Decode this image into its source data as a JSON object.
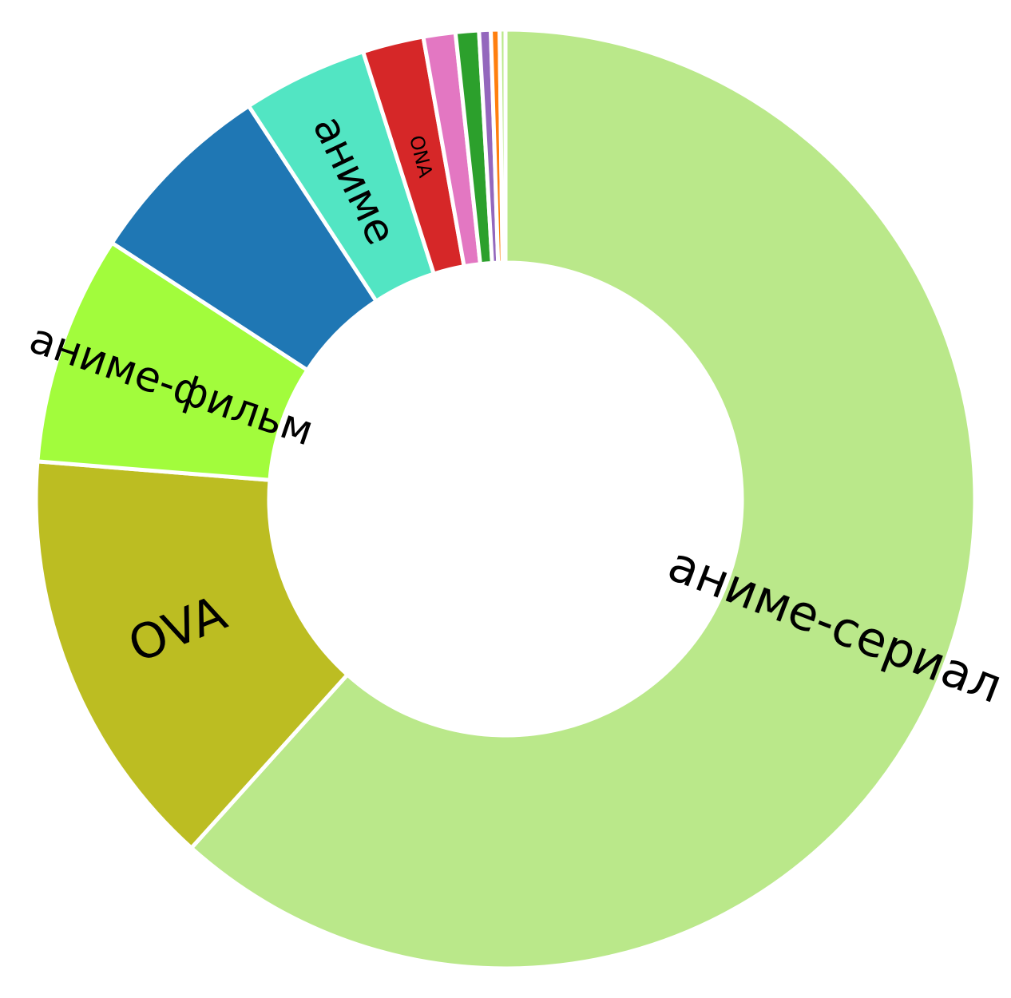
{
  "chart_data": {
    "type": "pie",
    "donut": true,
    "title": "",
    "series": [
      {
        "name": "type",
        "slices": [
          {
            "label": "аниме-сериал",
            "value": 61.6,
            "color": "#bae88a",
            "show_label": true
          },
          {
            "label": "OVA",
            "value": 14.6,
            "color": "#bcbd22",
            "show_label": true
          },
          {
            "label": "аниме-фильм",
            "value": 7.9,
            "color": "#a2fc3c",
            "show_label": true
          },
          {
            "label": "",
            "value": 6.6,
            "color": "#1f77b4",
            "show_label": false
          },
          {
            "label": "аниме",
            "value": 4.3,
            "color": "#52e5c3",
            "show_label": true
          },
          {
            "label": "ONA",
            "value": 2.1,
            "color": "#d62728",
            "show_label": true
          },
          {
            "label": "",
            "value": 1.1,
            "color": "#e377c2",
            "show_label": false
          },
          {
            "label": "",
            "value": 0.8,
            "color": "#2ca02c",
            "show_label": false
          },
          {
            "label": "",
            "value": 0.4,
            "color": "#9467bd",
            "show_label": false
          },
          {
            "label": "",
            "value": 0.3,
            "color": "#ff7f0e",
            "show_label": false
          },
          {
            "label": "",
            "value": 0.2,
            "color": "#bae88a",
            "show_label": false
          }
        ]
      }
    ],
    "start_angle": "top",
    "direction": "clockwise",
    "legend": "none"
  }
}
